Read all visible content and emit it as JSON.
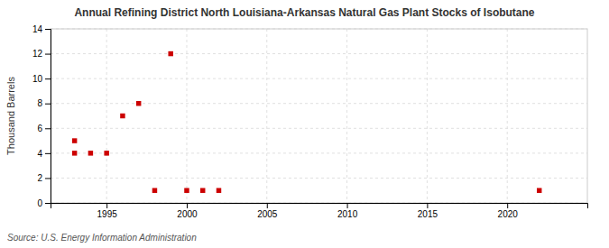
{
  "chart_data": {
    "type": "scatter",
    "title": "Annual Refining District North Louisiana-Arkansas Natural Gas Plant Stocks of Isobutane",
    "ylabel": "Thousand Barrels",
    "source": "Source: U.S. Energy Information Administration",
    "x": [
      1993,
      1993,
      1994,
      1995,
      1996,
      1997,
      1998,
      1999,
      2000,
      2001,
      2002,
      2022
    ],
    "values": [
      5,
      4,
      4,
      4,
      7,
      8,
      1,
      12,
      1,
      1,
      1,
      1
    ],
    "color": "#cc0000",
    "marker": "square",
    "xlim": [
      1991.5,
      2025
    ],
    "ylim": [
      0,
      14
    ],
    "xticks": [
      1995,
      2000,
      2005,
      2010,
      2015,
      2020
    ],
    "yticks": [
      0,
      2,
      4,
      6,
      8,
      10,
      12,
      14
    ],
    "grid": true
  }
}
